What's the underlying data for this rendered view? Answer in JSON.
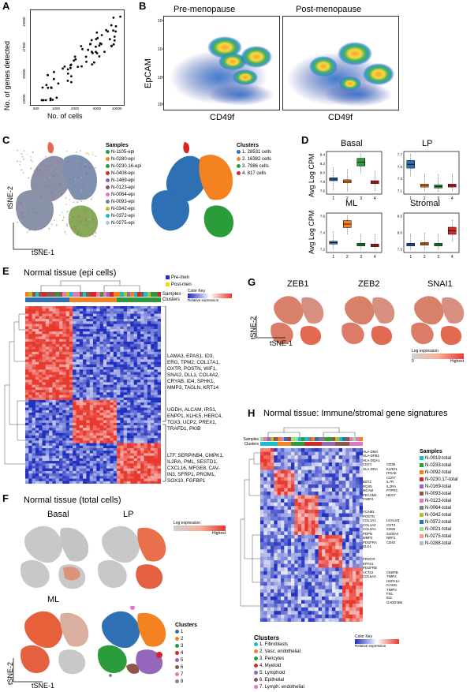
{
  "panels": {
    "A": "A",
    "B": "B",
    "C": "C",
    "D": "D",
    "E": "E",
    "F": "F",
    "G": "G",
    "H": "H"
  },
  "colors": {
    "blue": "#2f5fb3",
    "orange": "#f58220",
    "green": "#2a9d3a",
    "red": "#d62728",
    "purple": "#9467bd",
    "brown": "#8c564b",
    "pink": "#e377c2",
    "grey": "#888888",
    "heatRed": "#e8392f",
    "heatBlue": "#1f2fbf"
  },
  "panelA": {
    "ylabel": "No. of genes detected",
    "xlabel": "No. of cells",
    "xticks": [
      "500",
      "1000",
      "2000",
      "5000",
      "10000"
    ],
    "yticks": [
      "13000",
      "15000",
      "17000",
      "19000"
    ]
  },
  "panelB": {
    "titles": [
      "Pre-menopause",
      "Post-menopause"
    ],
    "ylabel": "EpCAM",
    "xlabel": "CD49f",
    "xlabel2": "CD49f",
    "ticks": [
      "10²",
      "10³",
      "10⁴",
      "10⁵"
    ]
  },
  "panelC": {
    "samples_title": "Samples",
    "samples": [
      "N-1105-epi",
      "N-0280-epi",
      "N-0230.16-epi",
      "N-0408-epi",
      "N-1469-epi",
      "N-0123-epi",
      "N-0064-epi",
      "N-0093-epi",
      "N-0342-epi",
      "N-0372-epi",
      "N-0275-epi"
    ],
    "clusters_title": "Clusters",
    "clusters": [
      "1. 28531 cells",
      "2. 16382 cells",
      "3. 7986 cells",
      "4. 817 cells"
    ],
    "ylabel": "tSNE-2",
    "xlabel": "tSNE-1"
  },
  "panelD": {
    "titles": [
      "Basal",
      "LP",
      "ML",
      "Stromal"
    ],
    "ylabel": "Avg Log CPM",
    "xticks": [
      "1",
      "2",
      "3",
      "4"
    ],
    "yticks_basal": [
      "7.6",
      "7.8",
      "8.0",
      "8.2",
      "8.4"
    ],
    "yticks_lp": [
      "7.1",
      "7.3",
      "7.5",
      "7.7"
    ],
    "yticks_ml": [
      "7.2",
      "7.4",
      "7.6"
    ],
    "yticks_stromal": [
      "7.5",
      "8.0",
      "8.5"
    ]
  },
  "panelE": {
    "title": "Normal tissue (epi cells)",
    "legend": [
      "Pre-men",
      "Post-men"
    ],
    "row_labels": [
      "Samples",
      "Clusters"
    ],
    "key_title": "Color Key",
    "key_label": "Relative expression",
    "genes1": "LAMA3, EPAS1, ID3,\nERG, TPM2, COL17A1,\nOXTR, POSTN, WIF1,\nSNAI2, DLL1, COL4A2,\nCRYAB, ID4, SPHK1,\nMMP3, TAGLN, KRT14",
    "genes2": "UGDH, ALCAM, IRS1,\nENPP1, KLHL5, HERC4,\nTOX3, UCP2, PREX1,\nTRAFD1, PKIB",
    "genes3": "LTF, SERPINB4, CMPK1,\nIL2RA, PML, SESTD1,\nCXCL16, MFGE8, CAV-\nIN3, SFRP1, PROM1,\nSOX10, FGFBP1"
  },
  "panelF": {
    "title": "Normal tissue (total cells)",
    "maps": [
      "Basal",
      "LP",
      "ML"
    ],
    "legend_title": "Log expression",
    "legend_hi": "Highest",
    "clusters_title": "Clusters",
    "clusters": [
      "1",
      "2",
      "3",
      "4",
      "5",
      "6",
      "7",
      "8"
    ],
    "ylabel": "tSNE-2",
    "xlabel": "tSNE-1"
  },
  "panelG": {
    "maps": [
      "ZEB1",
      "ZEB2",
      "SNAI1"
    ],
    "legend_title": "Log expression",
    "legend_lo": "0",
    "legend_hi": "Highest",
    "ylabel": "tSNE-2",
    "xlabel": "tSNE-1"
  },
  "panelH": {
    "title": "Normal tissue: Immune/stromal gene signatures",
    "row_labels": [
      "Samples",
      "Clusters"
    ],
    "genes_left": "HLA-DMA\nHLA-DPB1\nHLA-DQA1\nCD74\nHLA-DRA\n\n\nBST2\nRGS5\nMCAM\nPECAM1\nFABP4\n\n\nVCAM1\nPOSTN\nCOL1A1\nCOL1A2\nCOL3A1\nPDPN\nMMP2\nPDGFRA\nDLK1\n\n\nPROCR\nEPAS1\nPDGFRB\nACTA2\nCOL6A3",
    "genes_right": "\n\n\nCD3E\nKLRD1\nITGAE\nCCR7\nIL7R\nIL2RA\nPTPRC\nNKG7\n\n\n\n\n\nLGALS3\nCST3\nCD68\nS100A4\nNRP1\nCD40\n\n\n\n\n\n\nCEBPB\nTIMP2\nHSPA1A\nICAM1\nTIMP3\nFN1\nID3\nGADD45B",
    "samples_title": "Samples",
    "samples": [
      "N-0019-total",
      "N-0233-total",
      "N-0092-total",
      "N-0230.17-total",
      "N-0169-total",
      "N-0093-total",
      "N-0123-total",
      "N-0064-total",
      "N-0342-total",
      "N-0372-total",
      "N-0021-total",
      "N-0275-total",
      "N-0288-total"
    ],
    "clusters_title": "Clusters",
    "clusters": [
      "1. Fibroblasts",
      "2. Vasc. endothelial",
      "3. Pericytes",
      "4. Myeloid",
      "5. Lymphoid",
      "6. Epithelial",
      "7. Lymph. endothelial"
    ],
    "key_title": "Color Key",
    "key_label": "Relative expression"
  }
}
